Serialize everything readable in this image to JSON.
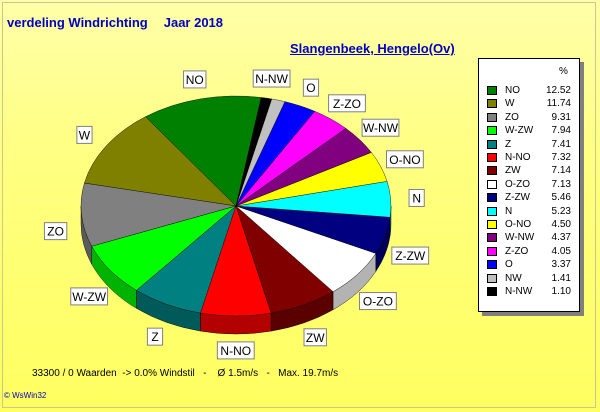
{
  "title": {
    "left": "verdeling Windrichting",
    "right": "Jaar 2018"
  },
  "subtitle": "Slangenbeek, Hengelo(Ov)",
  "footer": "33300 / 0 Waarden  -> 0.0% Windstil   -    Ø 1.5m/s   -   Max. 19.7m/s",
  "copyright": "© WsWin32",
  "chart_data": {
    "type": "pie",
    "legend_header": "%",
    "legend_position": "right",
    "series": [
      {
        "name": "NO",
        "value": 12.52,
        "color": "#008000"
      },
      {
        "name": "W",
        "value": 11.74,
        "color": "#808000"
      },
      {
        "name": "ZO",
        "value": 9.31,
        "color": "#808080"
      },
      {
        "name": "W-ZW",
        "value": 7.94,
        "color": "#00ff00"
      },
      {
        "name": "Z",
        "value": 7.41,
        "color": "#008080"
      },
      {
        "name": "N-NO",
        "value": 7.32,
        "color": "#ff0000"
      },
      {
        "name": "ZW",
        "value": 7.14,
        "color": "#800000"
      },
      {
        "name": "O-ZO",
        "value": 7.13,
        "color": "#ffffff"
      },
      {
        "name": "Z-ZW",
        "value": 5.46,
        "color": "#000080"
      },
      {
        "name": "N",
        "value": 5.23,
        "color": "#00ffff"
      },
      {
        "name": "O-NO",
        "value": 4.5,
        "color": "#ffff00"
      },
      {
        "name": "W-NW",
        "value": 4.37,
        "color": "#800080"
      },
      {
        "name": "Z-ZO",
        "value": 4.05,
        "color": "#ff00ff"
      },
      {
        "name": "O",
        "value": 3.37,
        "color": "#0000ff"
      },
      {
        "name": "NW",
        "value": 1.41,
        "color": "#c0c0c0"
      },
      {
        "name": "N-NW",
        "value": 1.1,
        "color": "#000000"
      }
    ],
    "slice_labels": [
      "NO",
      "W",
      "ZO",
      "W-ZW",
      "Z",
      "N-NO",
      "ZW",
      "O-ZO",
      "Z-ZW",
      "N",
      "O-NO",
      "W-NW",
      "Z-ZO",
      "O",
      "N-NW"
    ]
  }
}
